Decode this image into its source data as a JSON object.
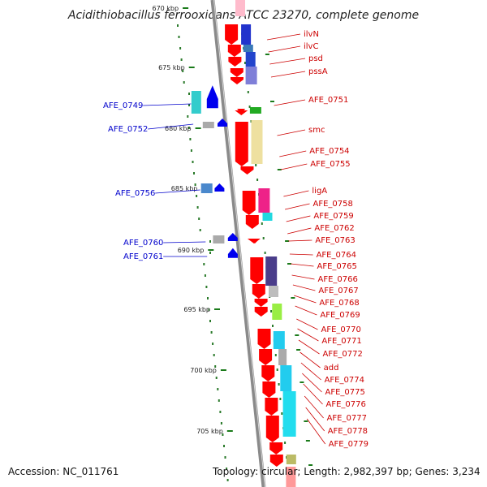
{
  "title": "Acidithiobacillus ferrooxidans ATCC 23270, complete genome",
  "ticks": [
    "670 kbp",
    "675 kbp",
    "680 kbp",
    "685 kbp",
    "690 kbp",
    "695 kbp",
    "700 kbp",
    "705 kbp"
  ],
  "right_labels": [
    "ilvN",
    "ilvC",
    "psd",
    "pssA",
    "AFE_0751",
    "smc",
    "AFE_0754",
    "AFE_0755",
    "ligA",
    "AFE_0758",
    "AFE_0759",
    "AFE_0762",
    "AFE_0763",
    "AFE_0764",
    "AFE_0765",
    "AFE_0766",
    "AFE_0767",
    "AFE_0768",
    "AFE_0769",
    "AFE_0770",
    "AFE_0771",
    "AFE_0772",
    "add",
    "AFE_0774",
    "AFE_0775",
    "AFE_0776",
    "AFE_0777",
    "AFE_0778",
    "AFE_0779"
  ],
  "left_labels": [
    "AFE_0749",
    "AFE_0752",
    "AFE_0756",
    "AFE_0760",
    "AFE_0761"
  ],
  "footer": {
    "accession": "Accession: NC_011761",
    "topology": "Topology: circular; Length: 2,982,397 bp; Genes: 3,234"
  },
  "colors": {
    "forward_gene": "#ff0000",
    "reverse_gene": "#0000ee",
    "backbone": "#888888",
    "tick": "#1a7a1a",
    "right_label": "#cc0000",
    "left_label": "#0000cc"
  }
}
